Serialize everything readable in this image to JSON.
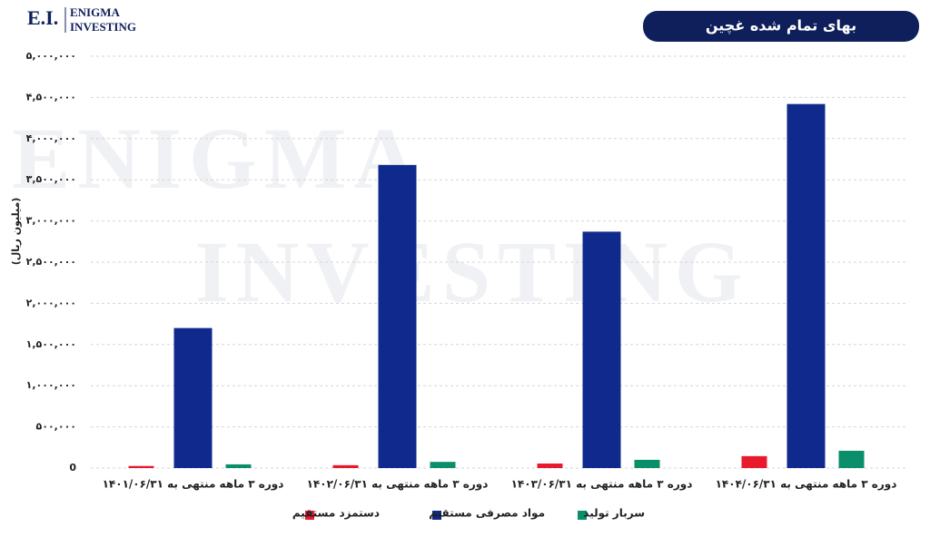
{
  "logo": {
    "mark": "E.I.",
    "line1": "ENIGMA",
    "line2": "INVESTING"
  },
  "watermark": {
    "line1": "ENIGMA",
    "line2": "INVESTING"
  },
  "chart_data": {
    "type": "bar",
    "title": "بهای تمام شده غچین",
    "y_label": "(میلیون ریال)",
    "categories": [
      "دوره ۳ ماهه منتهی به ۱۴۰۱/۰۶/۳۱",
      "دوره ۳ ماهه منتهی به ۱۴۰۲/۰۶/۳۱",
      "دوره ۳ ماهه منتهی به ۱۴۰۳/۰۶/۳۱",
      "دوره ۳ ماهه منتهی به ۱۴۰۴/۰۶/۳۱"
    ],
    "series": [
      {
        "name": "دستمزد مستقیم",
        "color": "#e8192c",
        "values": [
          25000,
          35000,
          55000,
          145000
        ]
      },
      {
        "name": "مواد مصرفی مستقیم",
        "color": "#0f2a8c",
        "values": [
          1700000,
          3680000,
          2870000,
          4420000
        ]
      },
      {
        "name": "سربار تولید",
        "color": "#0a8f6a",
        "values": [
          45000,
          75000,
          100000,
          210000
        ]
      }
    ],
    "ylim": [
      0,
      5000000
    ],
    "yticks": [
      0,
      {
        "value": 500000,
        "label": "۵۰۰,۰۰۰"
      },
      {
        "value": 1000000,
        "label": "۱,۰۰۰,۰۰۰"
      },
      {
        "value": 1500000,
        "label": "۱,۵۰۰,۰۰۰"
      },
      {
        "value": 2000000,
        "label": "۲,۰۰۰,۰۰۰"
      },
      {
        "value": 2500000,
        "label": "۲,۵۰۰,۰۰۰"
      },
      {
        "value": 3000000,
        "label": "۳,۰۰۰,۰۰۰"
      },
      {
        "value": 3500000,
        "label": "۳,۵۰۰,۰۰۰"
      },
      {
        "value": 4000000,
        "label": "۴,۰۰۰,۰۰۰"
      },
      {
        "value": 4500000,
        "label": "۴,۵۰۰,۰۰۰"
      },
      {
        "value": 5000000,
        "label": "۵,۰۰۰,۰۰۰"
      }
    ],
    "grid": true
  }
}
